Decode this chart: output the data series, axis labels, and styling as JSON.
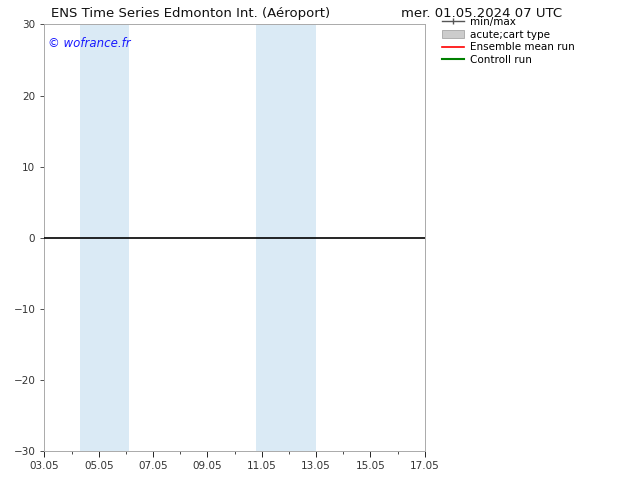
{
  "title_left": "ENS Time Series Edmonton Int. (Aéroport)",
  "title_right": "mer. 01.05.2024 07 UTC",
  "watermark": "© wofrance.fr",
  "ylim": [
    -30,
    30
  ],
  "yticks": [
    -30,
    -20,
    -10,
    0,
    10,
    20,
    30
  ],
  "xtick_labels": [
    "03.05",
    "05.05",
    "07.05",
    "09.05",
    "11.05",
    "13.05",
    "15.05",
    "17.05"
  ],
  "xtick_positions": [
    3,
    5,
    7,
    9,
    11,
    13,
    15,
    17
  ],
  "xlim": [
    3,
    17
  ],
  "blue_bands": [
    {
      "start": 4.3,
      "end": 6.1
    },
    {
      "start": 10.8,
      "end": 13.0
    }
  ],
  "band_color": "#daeaf5",
  "background_color": "#ffffff",
  "zero_line_color": "#000000",
  "legend_items": [
    {
      "label": "min/max",
      "color": "#555555",
      "lw": 1.0
    },
    {
      "label": "acute;cart type",
      "color": "#cccccc",
      "lw": 6
    },
    {
      "label": "Ensemble mean run",
      "color": "#ff0000",
      "lw": 1.2
    },
    {
      "label": "Controll run",
      "color": "#008000",
      "lw": 1.5
    }
  ],
  "watermark_color": "#1a1aff",
  "title_fontsize": 9.5,
  "tick_fontsize": 7.5,
  "legend_fontsize": 7.5,
  "watermark_fontsize": 8.5,
  "spine_color": "#aaaaaa",
  "tick_color": "#333333"
}
